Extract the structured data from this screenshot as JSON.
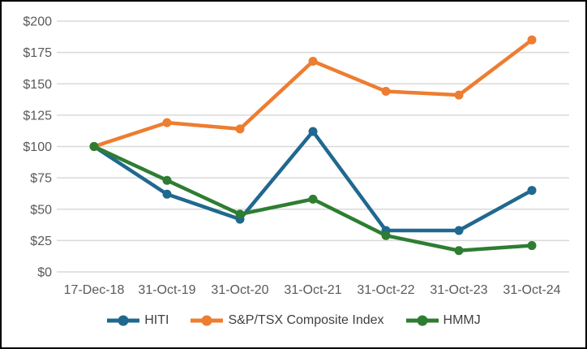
{
  "chart_data": {
    "type": "line",
    "title": "",
    "x_categories": [
      "17-Dec-18",
      "31-Oct-19",
      "31-Oct-20",
      "31-Oct-21",
      "31-Oct-22",
      "31-Oct-23",
      "31-Oct-24"
    ],
    "y_tick_labels": [
      "$200",
      "$175",
      "$150",
      "$125",
      "$100",
      "$75",
      "$50",
      "$25",
      "$0"
    ],
    "ylim": [
      0,
      200
    ],
    "y_tick_step": 25,
    "grid": "horizontal",
    "legend_position": "bottom",
    "series": [
      {
        "name": "HITI",
        "color": "#20688F",
        "values": [
          100,
          62,
          42,
          112,
          33,
          33,
          65
        ]
      },
      {
        "name": "S&P/TSX Composite Index",
        "color": "#ED7D31",
        "values": [
          100,
          119,
          114,
          168,
          144,
          141,
          185
        ]
      },
      {
        "name": "HMMJ",
        "color": "#2E7D32",
        "values": [
          100,
          73,
          46,
          58,
          29,
          17,
          21
        ]
      }
    ]
  },
  "colors": {
    "background": "#FFFFFF",
    "border": "#000000",
    "gridline": "#D9D9D9",
    "tick_label": "#595959",
    "legend_text": "#404040"
  }
}
